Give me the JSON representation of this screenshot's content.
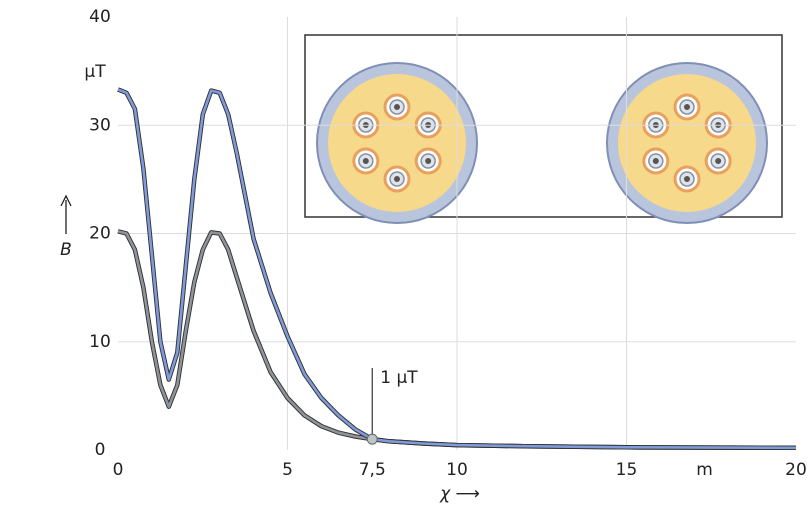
{
  "chart_data": {
    "type": "line",
    "x_label": "χ ⟶",
    "y_label": "B",
    "x_unit": "m",
    "y_unit": "μT",
    "x": [
      0,
      0.25,
      0.5,
      0.75,
      1,
      1.25,
      1.5,
      1.75,
      2,
      2.25,
      2.5,
      2.75,
      3,
      3.25,
      3.5,
      3.75,
      4,
      4.5,
      5,
      5.5,
      6,
      6.5,
      7,
      7.5,
      8,
      9,
      10,
      12,
      15,
      20
    ],
    "series": [
      {
        "color": "#8f949a",
        "values": [
          20.2,
          20,
          18.5,
          15,
          10,
          6,
          4,
          6,
          11,
          15.5,
          18.5,
          20.1,
          20,
          18.5,
          16,
          13.5,
          11,
          7.2,
          4.8,
          3.2,
          2.2,
          1.6,
          1.25,
          1,
          0.8,
          0.6,
          0.45,
          0.35,
          0.25,
          0.2
        ]
      },
      {
        "color": "#7f9bd9",
        "values": [
          33.3,
          33,
          31.5,
          26,
          18,
          10,
          6.5,
          9,
          17,
          25,
          31,
          33.2,
          33,
          31,
          27.5,
          23.5,
          19.5,
          14.5,
          10.5,
          7,
          4.8,
          3.2,
          1.9,
          1,
          0.8,
          0.6,
          0.45,
          0.35,
          0.25,
          0.2
        ]
      }
    ],
    "annotation": {
      "text": "1 μT",
      "x": 7.5,
      "y": 1
    },
    "xlim": [
      0,
      20
    ],
    "ylim": [
      0,
      40
    ],
    "xticks": [
      0,
      5,
      {
        "value": 7.5,
        "label": "7,5"
      },
      10,
      15,
      20
    ],
    "yticks": [
      0,
      10,
      20,
      30,
      40
    ],
    "grid": true
  }
}
